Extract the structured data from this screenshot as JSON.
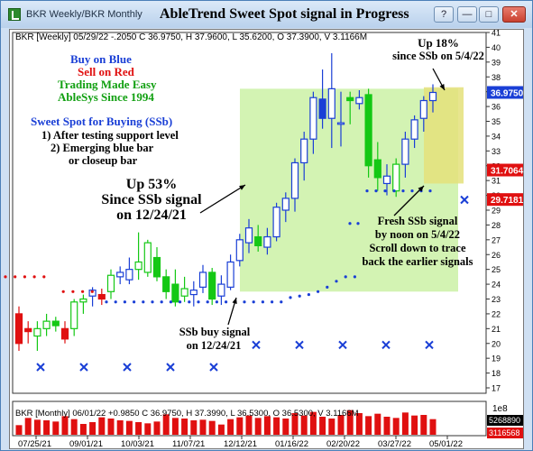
{
  "window": {
    "tab_label": "BKR Weekly/BKR Monthly",
    "title": "AbleTrend Sweet Spot signal in Progress",
    "buttons": [
      "?",
      "—",
      "□",
      "✕"
    ]
  },
  "weekly": {
    "info": "BKR [Weekly] 05/29/22 -.2050 C 36.9750, H 37.9600, L 35.6200, O 37.3900, V 3.1166M",
    "yaxis": [
      "41",
      "40",
      "39",
      "38",
      "37",
      "36",
      "35",
      "34",
      "33",
      "32",
      "31",
      "30",
      "29",
      "28",
      "27",
      "26",
      "25",
      "24",
      "23",
      "22",
      "21",
      "20",
      "19",
      "18",
      "17"
    ],
    "price_tags": {
      "current": "36.9750",
      "mid": "31.7064",
      "low": "29.7181"
    }
  },
  "monthly": {
    "info": "BKR [Monthly] 06/01/22 +0.9850 C 36.9750, H 37.3990, L 36.5300, O 36.5300, V 3.1166M",
    "scale_label": "1e8",
    "vol_labels": [
      "5268890",
      "3116568"
    ],
    "xaxis": [
      "07/25/21",
      "09/01/21",
      "10/03/21",
      "11/07/21",
      "12/12/21",
      "01/16/22",
      "02/20/22",
      "03/27/22",
      "05/01/22"
    ]
  },
  "legend": {
    "buy": "Buy on Blue",
    "sell": "Sell on Red",
    "easy": "Trading Made Easy",
    "since": "AbleSys Since 1994",
    "sweet_title": "Sweet Spot for Buying (SSb)",
    "sweet_1": "1) After testing support level",
    "sweet_2": "2) Emerging blue bar",
    "sweet_3": "or closeup bar"
  },
  "annotations": {
    "up53_a": "Up 53%",
    "up53_b": "Since SSb signal",
    "up53_c": "on 12/24/21",
    "up18_a": "Up 18%",
    "up18_b": "since SSb on 5/4/22",
    "fresh_a": "Fresh SSb signal",
    "fresh_b": "by noon on 5/4/22",
    "fresh_c": "Scroll down to trace",
    "fresh_d": "back the earlier signals",
    "ssb_a": "SSb buy signal",
    "ssb_b": "on 12/24/21"
  },
  "colors": {
    "blue": "#1a3fd6",
    "red": "#e01010",
    "green": "#14c814",
    "highlight": "#c8f0a0",
    "highlight2": "#e4e07a"
  },
  "chart_data": {
    "type": "candlestick",
    "title": "AbleTrend Sweet Spot signal in Progress",
    "ylim": [
      17,
      41
    ],
    "candles": [
      [
        "red",
        20,
        22.5,
        19.5,
        22
      ],
      [
        "red",
        21,
        21.5,
        20,
        20.8
      ],
      [
        "green",
        20.5,
        21.5,
        19.5,
        21
      ],
      [
        "green",
        21,
        22,
        20.5,
        21.5
      ],
      [
        "green",
        21.5,
        21.8,
        20.8,
        21.2
      ],
      [
        "red",
        21,
        21.5,
        20,
        20.3
      ],
      [
        "green",
        21,
        23,
        20.5,
        22.8
      ],
      [
        "green",
        22.8,
        23.3,
        22,
        23
      ],
      [
        "blue",
        23.2,
        23.8,
        22.5,
        23.6
      ],
      [
        "red",
        23,
        23.7,
        22.6,
        23.3
      ],
      [
        "green",
        23.5,
        25,
        23,
        24.6
      ],
      [
        "blue",
        24.5,
        25.2,
        24,
        24.8
      ],
      [
        "blue",
        24.3,
        25.8,
        24,
        25
      ],
      [
        "green",
        25,
        27.5,
        24.3,
        25.5
      ],
      [
        "green",
        24.8,
        27,
        24.5,
        26.8
      ],
      [
        "green",
        25.8,
        26.5,
        24.2,
        24.5
      ],
      [
        "green",
        24.5,
        25,
        23,
        23.5
      ],
      [
        "green",
        24,
        25,
        22.5,
        22.8
      ],
      [
        "green",
        23.2,
        24.5,
        22.8,
        23.7
      ],
      [
        "blue",
        23.3,
        24.2,
        22.5,
        23.6
      ],
      [
        "blue",
        23.8,
        25.3,
        23.4,
        24.8
      ],
      [
        "green",
        24.8,
        25.1,
        22.6,
        23
      ],
      [
        "blue",
        23.2,
        24.6,
        22.6,
        24
      ],
      [
        "blue",
        23.8,
        26,
        23.6,
        25.5
      ],
      [
        "blue",
        25.6,
        27.4,
        25.2,
        27
      ],
      [
        "blue",
        26.8,
        28.4,
        26.1,
        27.8
      ],
      [
        "green",
        27.2,
        28,
        26.2,
        26.6
      ],
      [
        "blue",
        26.5,
        27.8,
        26,
        27.2
      ],
      [
        "blue",
        27.2,
        29.5,
        26.9,
        29.2
      ],
      [
        "blue",
        29,
        30.2,
        28.2,
        29.8
      ],
      [
        "blue",
        29.8,
        32.5,
        28.9,
        32.2
      ],
      [
        "blue",
        32.2,
        34.3,
        31,
        33.8
      ],
      [
        "blue",
        33.8,
        37,
        32.8,
        36.6
      ],
      [
        "blue",
        36.5,
        38.5,
        34.5,
        35.2
      ],
      [
        "blue",
        35.2,
        39.6,
        33.2,
        37.2
      ],
      [
        "blue",
        34.8,
        37,
        33.3,
        34.9
      ],
      [
        "green",
        36.6,
        37,
        34.8,
        36.4
      ],
      [
        "blue",
        36.2,
        37.1,
        35.8,
        36.6
      ],
      [
        "green",
        36.8,
        37.2,
        31.2,
        32
      ],
      [
        "green",
        32.4,
        33.6,
        30.3,
        31.2
      ],
      [
        "blue",
        30.8,
        32.1,
        30,
        31.3
      ],
      [
        "green",
        30.3,
        32.5,
        29.9,
        32.1
      ],
      [
        "blue",
        32.1,
        34.3,
        31.2,
        33.8
      ],
      [
        "blue",
        33.8,
        35.4,
        33.2,
        35.1
      ],
      [
        "blue",
        35.2,
        36.7,
        34.3,
        36.4
      ],
      [
        "blue",
        36.4,
        37.5,
        35.6,
        36.95
      ]
    ],
    "sell_stop_dots": [
      24.5,
      24.5,
      24.5,
      24.5,
      24.5,
      null,
      23.5,
      23.5,
      23.5,
      23.5
    ],
    "buy_stop_dots": [
      22.8,
      22.8,
      22.8,
      22.8,
      22.8,
      22.8,
      22.8,
      22.8,
      22.8,
      22.8,
      22.8,
      22.8,
      22.8,
      22.8,
      22.8,
      22.8,
      22.8,
      22.8,
      22.8,
      22.8,
      23.1,
      23.2,
      23.3,
      23.5,
      23.8,
      24.2,
      24.5,
      24.5
    ],
    "cross_marks": [
      18.4,
      18.4,
      18.4,
      18.4,
      18.4,
      19.9,
      19.9,
      19.9,
      19.9,
      19.9
    ],
    "monthly_volume": [
      1.6,
      2.8,
      2.5,
      2.4,
      2.2,
      3.1,
      2.6,
      1.8,
      2.1,
      2.9,
      2.7,
      2.4,
      2.3,
      2.1,
      1.9,
      2.2,
      3.4,
      2.8,
      2.7,
      2.4,
      2.5,
      2.3,
      1.7,
      2.6,
      2.9,
      3.2,
      2.8,
      3.1,
      2.9,
      2.7,
      3.6,
      3.2,
      3.8,
      3.0,
      2.7,
      3.3,
      4.1,
      3.6,
      3.1,
      3.5,
      3.0,
      2.8,
      3.7,
      3.2,
      3.3,
      2.6
    ]
  }
}
